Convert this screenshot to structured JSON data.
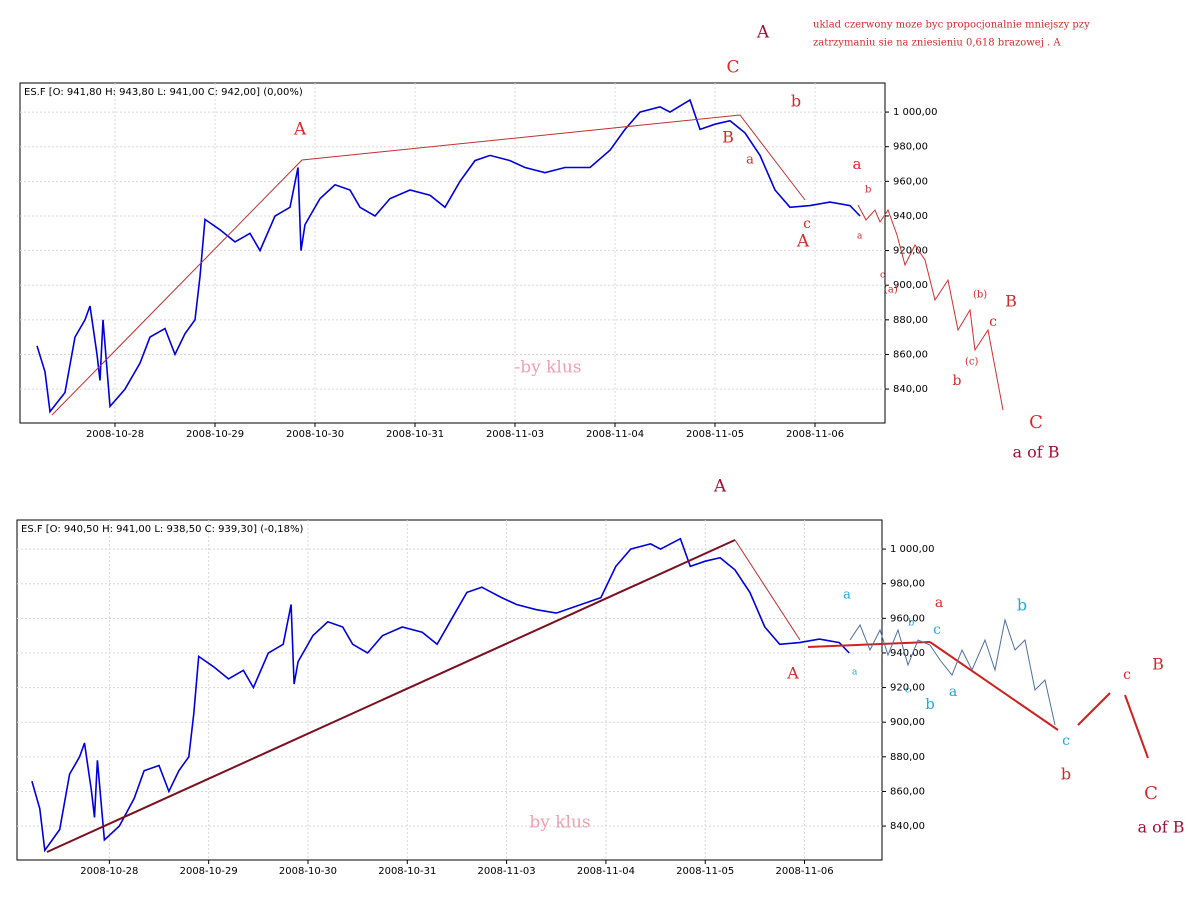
{
  "chart_data": [
    {
      "type": "line",
      "header": "ES.F [O: 941,80  H: 943,80  L: 941,00  C: 942,00] (0,00%)",
      "xlim": [
        0.05,
        8.7
      ],
      "ylim": [
        820.4,
        1016.8
      ],
      "xticks": [
        {
          "value": 1,
          "label": "2008-10-28"
        },
        {
          "value": 2,
          "label": "2008-10-29"
        },
        {
          "value": 3,
          "label": "2008-10-30"
        },
        {
          "value": 4,
          "label": "2008-10-31"
        },
        {
          "value": 5,
          "label": "2008-11-03"
        },
        {
          "value": 6,
          "label": "2008-11-04"
        },
        {
          "value": 7,
          "label": "2008-11-05"
        },
        {
          "value": 8,
          "label": "2008-11-06"
        }
      ],
      "yticks": [
        {
          "value": 840,
          "label": "840,00"
        },
        {
          "value": 860,
          "label": "860,00"
        },
        {
          "value": 880,
          "label": "880,00"
        },
        {
          "value": 900,
          "label": "900,00"
        },
        {
          "value": 920,
          "label": "920,00"
        },
        {
          "value": 940,
          "label": "940,00"
        },
        {
          "value": 960,
          "label": "960,00"
        },
        {
          "value": 980,
          "label": "980,00"
        },
        {
          "value": 1000,
          "label": "1 000,00"
        }
      ],
      "grid": true,
      "series": [
        {
          "color": "#0000dd",
          "x": [
            0.22,
            0.3,
            0.35,
            0.5,
            0.6,
            0.7,
            0.75,
            0.82,
            0.85,
            0.88,
            0.95,
            1.1,
            1.25,
            1.35,
            1.5,
            1.6,
            1.7,
            1.8,
            1.85,
            1.9,
            2.05,
            2.2,
            2.35,
            2.45,
            2.6,
            2.75,
            2.83,
            2.86,
            2.9,
            3.05,
            3.2,
            3.35,
            3.45,
            3.6,
            3.75,
            3.95,
            4.15,
            4.3,
            4.45,
            4.6,
            4.75,
            4.95,
            5.1,
            5.3,
            5.5,
            5.75,
            5.95,
            6.1,
            6.25,
            6.45,
            6.55,
            6.75,
            6.85,
            7.0,
            7.15,
            7.3,
            7.45,
            7.6,
            7.75,
            7.95,
            8.15,
            8.35,
            8.45
          ],
          "values": [
            865,
            850,
            827,
            838,
            870,
            880,
            888,
            860,
            845,
            880,
            830,
            840,
            855,
            870,
            875,
            860,
            872,
            880,
            905,
            938,
            932,
            925,
            930,
            920,
            940,
            945,
            968,
            920,
            935,
            950,
            958,
            955,
            945,
            940,
            950,
            955,
            952,
            945,
            960,
            972,
            975,
            972,
            968,
            965,
            968,
            968,
            978,
            990,
            1000,
            1003,
            1000,
            1007,
            990,
            993,
            995,
            988,
            975,
            955,
            945,
            946,
            948,
            946,
            940
          ]
        }
      ],
      "annotations": [
        "uklad czerwony moze byc propocjonalnie mniejszy pzy",
        "zatrzymaniu sie na zniesieniu 0,618 brazowej . A",
        "A",
        "C",
        "A",
        "b",
        "B",
        "a",
        "c",
        "A",
        "a",
        "b",
        "a",
        "c",
        "(a)",
        "(b)",
        "B",
        "c",
        "(c)",
        "b",
        "C",
        "a of B",
        "-by klus"
      ]
    },
    {
      "type": "line",
      "header": "ES.F [O: 940,50  H: 941,00  L: 938,50  C: 939,30] (-0,18%)",
      "xlim": [
        0.07,
        8.78
      ],
      "ylim": [
        820.4,
        1016.8
      ],
      "xticks": [
        {
          "value": 1,
          "label": "2008-10-28"
        },
        {
          "value": 2,
          "label": "2008-10-29"
        },
        {
          "value": 3,
          "label": "2008-10-30"
        },
        {
          "value": 4,
          "label": "2008-10-31"
        },
        {
          "value": 5,
          "label": "2008-11-03"
        },
        {
          "value": 6,
          "label": "2008-11-04"
        },
        {
          "value": 7,
          "label": "2008-11-05"
        },
        {
          "value": 8,
          "label": "2008-11-06"
        }
      ],
      "yticks": [
        {
          "value": 840,
          "label": "840,00"
        },
        {
          "value": 860,
          "label": "860,00"
        },
        {
          "value": 880,
          "label": "880,00"
        },
        {
          "value": 900,
          "label": "900,00"
        },
        {
          "value": 920,
          "label": "920,00"
        },
        {
          "value": 940,
          "label": "940,00"
        },
        {
          "value": 960,
          "label": "960,00"
        },
        {
          "value": 980,
          "label": "980,00"
        },
        {
          "value": 1000,
          "label": "1 000,00"
        }
      ],
      "grid": true,
      "series": [
        {
          "color": "#0000dd",
          "x": [
            0.22,
            0.3,
            0.35,
            0.5,
            0.6,
            0.7,
            0.75,
            0.82,
            0.85,
            0.88,
            0.95,
            1.1,
            1.25,
            1.35,
            1.5,
            1.6,
            1.7,
            1.8,
            1.85,
            1.9,
            2.05,
            2.2,
            2.35,
            2.45,
            2.6,
            2.75,
            2.83,
            2.86,
            2.9,
            3.05,
            3.2,
            3.35,
            3.45,
            3.6,
            3.75,
            3.95,
            4.15,
            4.3,
            4.45,
            4.6,
            4.75,
            4.95,
            5.1,
            5.3,
            5.5,
            5.75,
            5.95,
            6.1,
            6.25,
            6.45,
            6.55,
            6.75,
            6.85,
            7.0,
            7.15,
            7.3,
            7.45,
            7.6,
            7.75,
            7.95,
            8.15,
            8.35,
            8.45
          ],
          "values": [
            866,
            850,
            826,
            838,
            870,
            880,
            888,
            860,
            845,
            878,
            832,
            840,
            856,
            872,
            875,
            860,
            872,
            880,
            905,
            938,
            932,
            925,
            930,
            920,
            940,
            945,
            968,
            922,
            935,
            950,
            958,
            955,
            945,
            940,
            950,
            955,
            952,
            945,
            960,
            975,
            978,
            972,
            968,
            965,
            963,
            968,
            972,
            990,
            1000,
            1003,
            1000,
            1006,
            990,
            993,
            995,
            988,
            975,
            955,
            945,
            946,
            948,
            946,
            940
          ]
        }
      ],
      "annotations": [
        "A",
        "a",
        "b",
        "a",
        "b",
        "c",
        "A",
        "a",
        "c",
        "b",
        "a",
        "c",
        "b",
        "c",
        "B",
        "C",
        "a of B",
        "by klus"
      ]
    }
  ]
}
